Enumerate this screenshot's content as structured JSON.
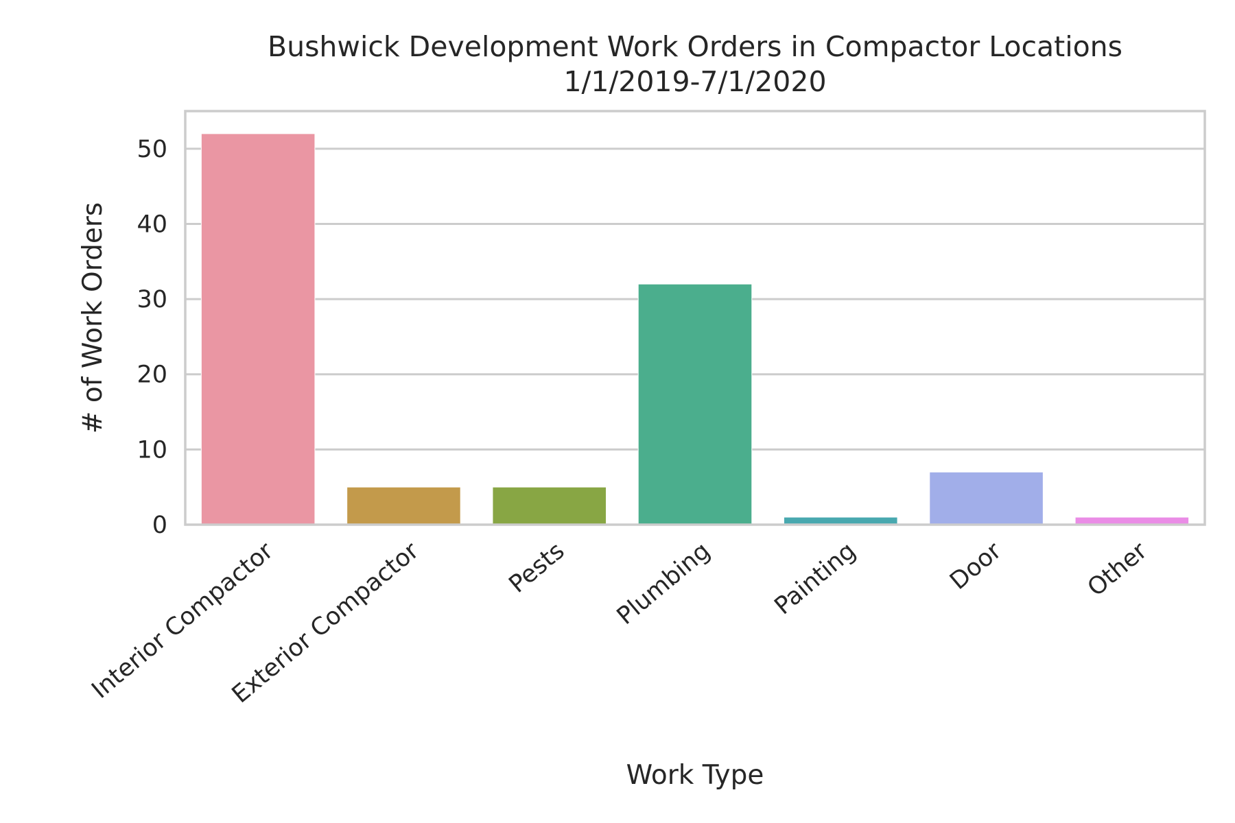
{
  "chart_data": {
    "type": "bar",
    "title": [
      "Bushwick Development Work Orders in Compactor Locations",
      "1/1/2019-7/1/2020"
    ],
    "xlabel": "Work Type",
    "ylabel": "# of Work Orders",
    "categories": [
      "Interior Compactor",
      "Exterior Compactor",
      "Pests",
      "Plumbing",
      "Painting",
      "Door",
      "Other"
    ],
    "values": [
      52,
      5,
      5,
      32,
      1,
      7,
      1
    ],
    "colors": [
      "#ea96a3",
      "#c39a4b",
      "#88a644",
      "#4bae8d",
      "#48a8af",
      "#a1aee9",
      "#ea8ce6"
    ],
    "ylim": [
      0,
      55
    ],
    "yticks": [
      0,
      10,
      20,
      30,
      40,
      50
    ],
    "grid": "horizontal",
    "legend": "none"
  }
}
